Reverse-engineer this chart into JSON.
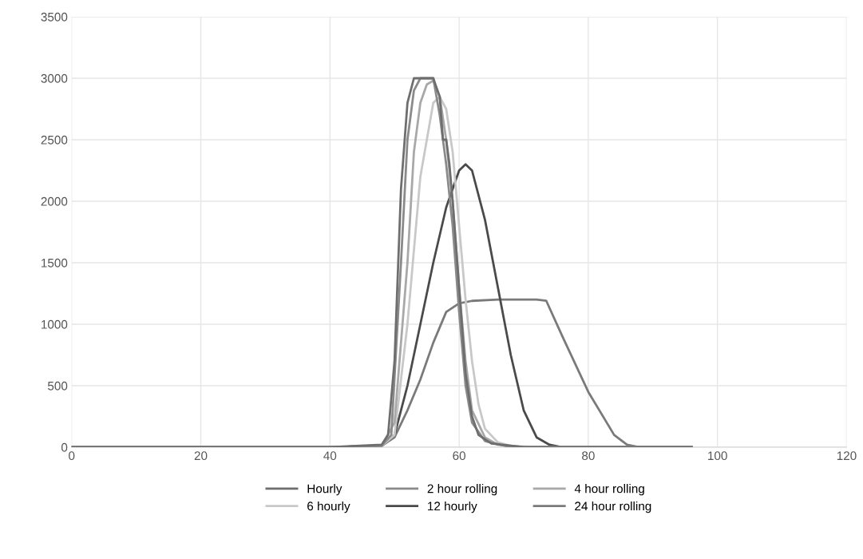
{
  "chart_data": {
    "type": "line",
    "xlim": [
      0,
      120
    ],
    "ylim": [
      0,
      3500
    ],
    "xticks": [
      0,
      20,
      40,
      60,
      80,
      100,
      120
    ],
    "yticks": [
      0,
      500,
      1000,
      1500,
      2000,
      2500,
      3000,
      3500
    ],
    "grid": true,
    "legend": "bottom",
    "marker": "none",
    "line_style": "solid",
    "series": [
      {
        "name": "Hourly",
        "color": "#6e6e6e",
        "x": [
          0,
          20,
          40,
          48,
          49,
          50,
          51,
          52,
          53,
          55,
          56,
          57,
          57.5,
          58,
          58.5,
          59,
          60,
          61,
          62,
          63,
          65,
          70,
          96
        ],
        "values": [
          0,
          0,
          0,
          20,
          100,
          700,
          2100,
          2800,
          3000,
          3000,
          3000,
          2850,
          2500,
          2500,
          2300,
          2000,
          1300,
          600,
          250,
          100,
          30,
          0,
          0
        ]
      },
      {
        "name": "2 hour rolling",
        "color": "#8a8a8a",
        "x": [
          0,
          20,
          40,
          48,
          49.5,
          51,
          52,
          53,
          54,
          56,
          57,
          58,
          59,
          60,
          61,
          62,
          64,
          68,
          96
        ],
        "values": [
          0,
          0,
          0,
          10,
          100,
          1500,
          2500,
          2900,
          3000,
          3000,
          2700,
          2300,
          1800,
          1100,
          500,
          200,
          50,
          0,
          0
        ]
      },
      {
        "name": "4 hour rolling",
        "color": "#a8a8a8",
        "x": [
          0,
          20,
          40,
          48,
          50,
          52,
          53,
          54,
          55,
          56,
          57,
          58,
          59,
          60,
          61,
          62,
          64,
          66,
          70,
          96
        ],
        "values": [
          0,
          0,
          0,
          10,
          200,
          1500,
          2400,
          2800,
          2950,
          2980,
          2850,
          2500,
          2000,
          1300,
          700,
          300,
          80,
          20,
          0,
          0
        ]
      },
      {
        "name": "6 hourly",
        "color": "#c8c8c8",
        "x": [
          0,
          20,
          40,
          48,
          50,
          52,
          54,
          56,
          57,
          58,
          59,
          60,
          61,
          62,
          63,
          64,
          66,
          68,
          72,
          96
        ],
        "values": [
          0,
          0,
          0,
          10,
          100,
          1000,
          2200,
          2800,
          2850,
          2750,
          2400,
          1800,
          1200,
          700,
          350,
          150,
          40,
          10,
          0,
          0
        ]
      },
      {
        "name": "12 hourly",
        "color": "#4a4a4a",
        "x": [
          0,
          20,
          40,
          48,
          50,
          52,
          54,
          56,
          58,
          60,
          61,
          62,
          64,
          66,
          68,
          70,
          72,
          74,
          76,
          96
        ],
        "values": [
          0,
          0,
          0,
          10,
          100,
          500,
          1000,
          1500,
          1950,
          2250,
          2300,
          2250,
          1850,
          1300,
          750,
          300,
          80,
          20,
          0,
          0
        ]
      },
      {
        "name": "24 hour rolling",
        "color": "#7a7a7a",
        "x": [
          0,
          20,
          40,
          48,
          50,
          52,
          54,
          56,
          58,
          60,
          62,
          66,
          72,
          73.5,
          76,
          80,
          84,
          86,
          88,
          96
        ],
        "values": [
          0,
          0,
          0,
          10,
          80,
          300,
          550,
          850,
          1100,
          1170,
          1190,
          1200,
          1200,
          1190,
          900,
          450,
          100,
          20,
          0,
          0
        ]
      }
    ]
  }
}
